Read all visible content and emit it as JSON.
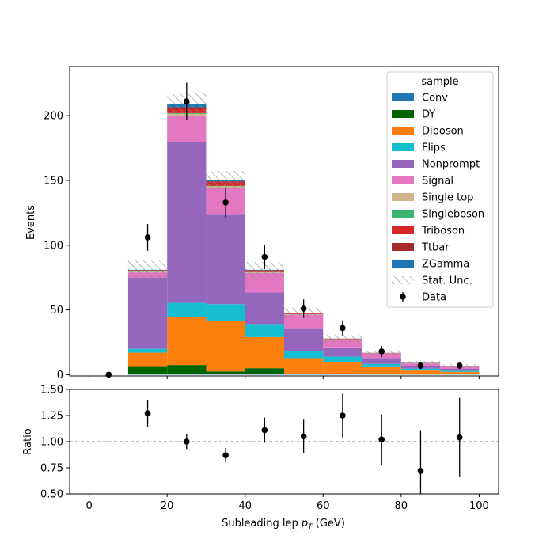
{
  "chart_data": [
    {
      "type": "bar",
      "stacked": true,
      "bin_edges": [
        0,
        10,
        20,
        30,
        40,
        50,
        60,
        70,
        80,
        90,
        100
      ],
      "ylabel": "Events",
      "xlabel": "",
      "xlim": [
        -5,
        105
      ],
      "ylim": [
        -1,
        238
      ],
      "yticks": [
        0,
        50,
        100,
        150,
        200
      ],
      "xticks": [
        0,
        20,
        40,
        60,
        80,
        100
      ],
      "legend": {
        "title": "sample",
        "placement": "top-right",
        "unc_label": "Stat. Unc.",
        "data_label": "Data"
      },
      "series": [
        {
          "name": "Conv",
          "color": "#1f77b4",
          "values": [
            0,
            0.5,
            0.5,
            0.5,
            0.5,
            0.3,
            0.2,
            0.1,
            0.1,
            0.1
          ]
        },
        {
          "name": "DY",
          "color": "#006400",
          "values": [
            0,
            5.5,
            7.0,
            2.0,
            4.5,
            0.5,
            0.3,
            0.2,
            0.1,
            0.1
          ]
        },
        {
          "name": "Diboson",
          "color": "#ff7f0e",
          "values": [
            0,
            11.0,
            37.0,
            39.0,
            24.0,
            12.0,
            9.0,
            5.5,
            3.0,
            2.0
          ]
        },
        {
          "name": "Flips",
          "color": "#17becf",
          "values": [
            0,
            3.0,
            11.0,
            13.0,
            9.5,
            5.5,
            4.5,
            2.5,
            1.5,
            0.8
          ]
        },
        {
          "name": "Nonprompt",
          "color": "#9467bd",
          "values": [
            0,
            55.0,
            124.0,
            69.0,
            25.0,
            17.0,
            6.5,
            4.5,
            2.0,
            1.5
          ]
        },
        {
          "name": "Signal",
          "color": "#e377c2",
          "values": [
            0,
            4.0,
            20.0,
            21.0,
            15.0,
            11.0,
            6.5,
            3.5,
            2.0,
            1.5
          ]
        },
        {
          "name": "Single top",
          "color": "#d2b48c",
          "values": [
            0,
            0.5,
            2.0,
            1.0,
            0.5,
            0.3,
            0.2,
            0.1,
            0.1,
            0.1
          ]
        },
        {
          "name": "Singleboson",
          "color": "#3cb371",
          "values": [
            0,
            0.3,
            0.5,
            0.3,
            0.2,
            0.2,
            0.1,
            0.1,
            0.1,
            0.1
          ]
        },
        {
          "name": "Triboson",
          "color": "#d62728",
          "values": [
            0,
            0.5,
            3.0,
            2.5,
            1.0,
            0.5,
            0.3,
            0.2,
            0.1,
            0.1
          ]
        },
        {
          "name": "Ttbar",
          "color": "#a52a2a",
          "values": [
            0,
            0.5,
            1.5,
            1.0,
            0.5,
            0.3,
            0.2,
            0.1,
            0.1,
            0.1
          ]
        },
        {
          "name": "ZGamma",
          "color": "#1f77b4",
          "values": [
            0,
            0.2,
            2.5,
            1.0,
            0.3,
            0.2,
            0.1,
            0.1,
            0.1,
            0.1
          ]
        }
      ],
      "stat_unc": [
        0,
        7,
        8,
        7,
        6,
        4,
        3,
        2,
        1.5,
        1.5
      ],
      "data": {
        "x": [
          5,
          15,
          25,
          35,
          45,
          55,
          65,
          75,
          85,
          95
        ],
        "y": [
          0,
          106,
          211,
          133,
          91,
          51,
          36,
          18,
          7,
          7
        ],
        "yerr": [
          0,
          10.3,
          14.5,
          11.5,
          9.5,
          7.1,
          6.0,
          4.2,
          2.6,
          2.6
        ]
      }
    },
    {
      "type": "scatter",
      "xlabel": "Subleading lep pT (GeV)",
      "ylabel": "Ratio",
      "xlim": [
        -5,
        105
      ],
      "ylim": [
        0.5,
        1.5
      ],
      "reference_line": 1.0,
      "xticks": [
        0,
        20,
        40,
        60,
        80,
        100
      ],
      "yticks": [
        "0.50",
        "0.75",
        "1.00",
        "1.25",
        "1.50"
      ],
      "x": [
        15,
        25,
        35,
        45,
        55,
        65,
        75,
        85,
        95
      ],
      "y": [
        1.27,
        1.0,
        0.87,
        1.11,
        1.05,
        1.25,
        1.02,
        0.72,
        1.04
      ],
      "yerr": [
        0.13,
        0.07,
        0.07,
        0.12,
        0.16,
        0.21,
        0.24,
        0.39,
        0.38
      ]
    }
  ]
}
